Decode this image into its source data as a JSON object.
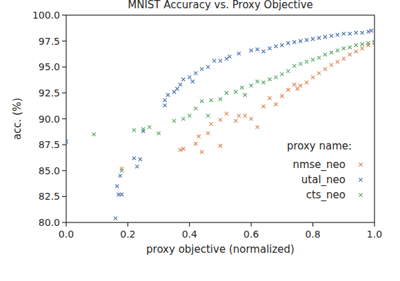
{
  "chart_data": {
    "type": "scatter",
    "title": "MNIST Accuracy vs. Proxy Objective",
    "x_label": "proxy objective (normalized)",
    "y_label": "acc. (%)",
    "legend_title": "proxy name:",
    "legend": "lower right",
    "marker": "x",
    "grid": false,
    "xlim": [
      0,
      1
    ],
    "xticks": [
      {
        "value": 0,
        "label": "0.0"
      },
      0.2,
      0.4,
      0.6,
      0.8,
      {
        "value": 1,
        "label": "1.0"
      }
    ],
    "ylim": [
      80,
      100
    ],
    "yticks": [
      {
        "value": 80,
        "label": "80.0"
      },
      82.5,
      {
        "value": 85,
        "label": "85.0"
      },
      87.5,
      {
        "value": 90,
        "label": "90.0"
      },
      92.5,
      {
        "value": 95,
        "label": "95.0"
      },
      97.5,
      {
        "value": 100,
        "label": "100.0"
      }
    ],
    "series": [
      {
        "name": "nmse_neo",
        "color": "#dd8452",
        "x": [
          0.18,
          0.37,
          0.38,
          0.42,
          0.43,
          0.44,
          0.46,
          0.47,
          0.5,
          0.5,
          0.52,
          0.55,
          0.56,
          0.58,
          0.6,
          0.62,
          0.64,
          0.66,
          0.68,
          0.7,
          0.72,
          0.74,
          0.75,
          0.76,
          0.78,
          0.8,
          0.82,
          0.84,
          0.86,
          0.88,
          0.9,
          0.92,
          0.94,
          0.96,
          0.98,
          1.0
        ],
        "values": [
          85.2,
          87.0,
          87.1,
          87.6,
          88.3,
          86.8,
          88.6,
          89.5,
          87.4,
          89.9,
          90.5,
          89.8,
          90.3,
          90.3,
          90.0,
          89.2,
          91.2,
          92.0,
          91.4,
          92.2,
          92.8,
          93.3,
          92.9,
          93.2,
          93.5,
          94.0,
          94.4,
          94.8,
          95.2,
          95.5,
          95.8,
          96.2,
          96.5,
          96.8,
          97.1,
          97.3
        ]
      },
      {
        "name": "utal_neo",
        "color": "#4c72b0",
        "x": [
          0.0,
          0.16,
          0.165,
          0.17,
          0.175,
          0.18,
          0.22,
          0.23,
          0.24,
          0.25,
          0.32,
          0.32,
          0.33,
          0.35,
          0.36,
          0.37,
          0.38,
          0.4,
          0.41,
          0.42,
          0.44,
          0.46,
          0.48,
          0.5,
          0.52,
          0.53,
          0.56,
          0.6,
          0.62,
          0.64,
          0.66,
          0.68,
          0.7,
          0.72,
          0.74,
          0.76,
          0.78,
          0.8,
          0.82,
          0.84,
          0.86,
          0.88,
          0.9,
          0.92,
          0.94,
          0.96,
          0.98,
          0.99
        ],
        "values": [
          87.8,
          80.4,
          83.5,
          82.7,
          84.5,
          82.7,
          86.2,
          85.4,
          86.1,
          88.8,
          91.3,
          91.8,
          92.3,
          92.6,
          92.9,
          93.3,
          93.8,
          94.0,
          93.6,
          94.4,
          94.8,
          95.0,
          95.6,
          95.6,
          95.8,
          96.0,
          96.3,
          96.6,
          96.7,
          96.5,
          96.8,
          97.0,
          97.1,
          97.3,
          97.4,
          97.5,
          97.6,
          97.7,
          97.8,
          97.9,
          98.0,
          98.1,
          98.2,
          98.2,
          98.3,
          98.3,
          98.4,
          98.5
        ]
      },
      {
        "name": "cts_neo",
        "color": "#55a868",
        "x": [
          0.09,
          0.18,
          0.22,
          0.25,
          0.27,
          0.3,
          0.35,
          0.38,
          0.4,
          0.42,
          0.44,
          0.46,
          0.47,
          0.5,
          0.52,
          0.55,
          0.57,
          0.58,
          0.6,
          0.62,
          0.64,
          0.66,
          0.68,
          0.7,
          0.72,
          0.74,
          0.76,
          0.78,
          0.8,
          0.82,
          0.84,
          0.86,
          0.88,
          0.9,
          0.92,
          0.94,
          0.96,
          0.98,
          1.0
        ],
        "values": [
          88.5,
          85.0,
          88.9,
          89.0,
          89.2,
          88.6,
          89.8,
          90.0,
          90.3,
          91.0,
          91.7,
          90.3,
          91.8,
          91.9,
          92.5,
          92.6,
          93.0,
          92.3,
          93.2,
          93.6,
          93.5,
          93.8,
          94.0,
          94.3,
          94.6,
          95.1,
          95.3,
          95.5,
          95.7,
          95.9,
          96.2,
          96.4,
          96.6,
          96.8,
          96.9,
          97.1,
          97.2,
          97.3,
          97.4
        ]
      }
    ]
  }
}
